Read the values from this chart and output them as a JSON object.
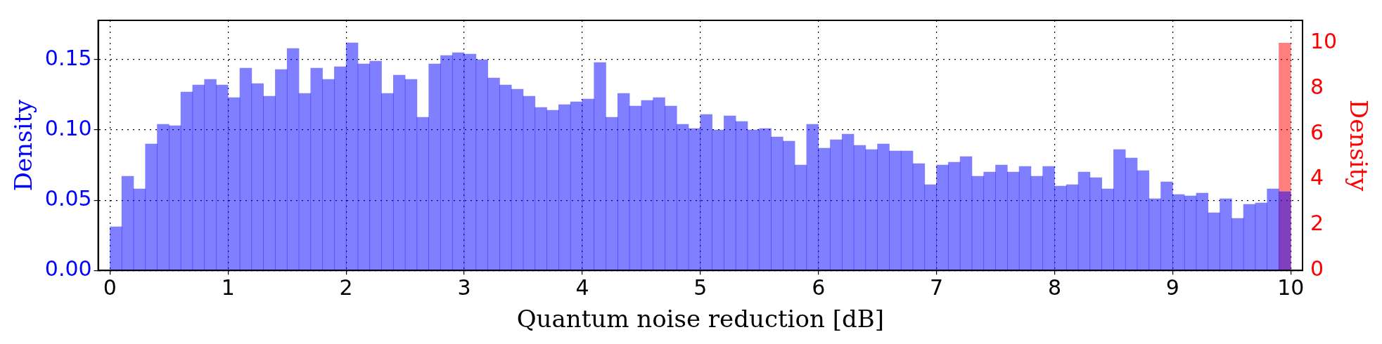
{
  "chart_data": {
    "type": "histogram",
    "xlabel": "Quantum noise reduction [dB]",
    "ylabel": "Density",
    "y2label": "Density",
    "xlim": [
      -0.1,
      10.1
    ],
    "xticks": [
      0,
      1,
      2,
      3,
      4,
      5,
      6,
      7,
      8,
      9,
      10
    ],
    "ylim": [
      0,
      0.178
    ],
    "yticks": [
      {
        "value": 0,
        "label": "0.00"
      },
      {
        "value": 0.05,
        "label": "0.05"
      },
      {
        "value": 0.1,
        "label": "0.10"
      },
      {
        "value": 0.15,
        "label": "0.15"
      }
    ],
    "y2lim": [
      0,
      11
    ],
    "y2ticks": [
      0,
      2,
      4,
      6,
      8,
      10
    ],
    "grid": true,
    "legend": false,
    "bins": [
      0,
      0.1,
      0.2,
      0.3,
      0.4,
      0.5,
      0.6,
      0.7,
      0.8,
      0.9,
      1,
      1.1,
      1.2,
      1.3,
      1.4,
      1.5,
      1.6,
      1.7,
      1.8,
      1.9,
      2,
      2.1,
      2.2,
      2.3,
      2.4,
      2.5,
      2.6,
      2.7,
      2.8,
      2.9,
      3,
      3.1,
      3.2,
      3.3,
      3.4,
      3.5,
      3.6,
      3.7,
      3.8,
      3.9,
      4,
      4.1,
      4.2,
      4.3,
      4.4,
      4.5,
      4.6,
      4.7,
      4.8,
      4.9,
      5,
      5.1,
      5.2,
      5.3,
      5.4,
      5.5,
      5.6,
      5.7,
      5.8,
      5.9,
      6,
      6.1,
      6.2,
      6.3,
      6.4,
      6.5,
      6.6,
      6.7,
      6.8,
      6.9,
      7,
      7.1,
      7.2,
      7.3,
      7.4,
      7.5,
      7.6,
      7.7,
      7.8,
      7.9,
      8,
      8.1,
      8.2,
      8.3,
      8.4,
      8.5,
      8.6,
      8.7,
      8.8,
      8.9,
      9,
      9.1,
      9.2,
      9.3,
      9.4,
      9.5,
      9.6,
      9.7,
      9.8,
      9.9,
      10
    ],
    "series": [
      {
        "color": "#0000ff",
        "values": [
          0.031,
          0.067,
          0.058,
          0.09,
          0.104,
          0.103,
          0.127,
          0.132,
          0.136,
          0.132,
          0.123,
          0.144,
          0.133,
          0.124,
          0.143,
          0.158,
          0.126,
          0.144,
          0.136,
          0.145,
          0.162,
          0.147,
          0.149,
          0.126,
          0.139,
          0.136,
          0.109,
          0.147,
          0.153,
          0.155,
          0.154,
          0.15,
          0.137,
          0.132,
          0.129,
          0.124,
          0.116,
          0.114,
          0.118,
          0.12,
          0.122,
          0.148,
          0.109,
          0.126,
          0.117,
          0.121,
          0.123,
          0.117,
          0.104,
          0.101,
          0.111,
          0.1,
          0.11,
          0.106,
          0.1,
          0.101,
          0.095,
          0.092,
          0.075,
          0.104,
          0.087,
          0.093,
          0.097,
          0.089,
          0.086,
          0.09,
          0.085,
          0.085,
          0.076,
          0.061,
          0.075,
          0.077,
          0.081,
          0.067,
          0.07,
          0.075,
          0.07,
          0.074,
          0.067,
          0.074,
          0.06,
          0.061,
          0.07,
          0.066,
          0.058,
          0.086,
          0.08,
          0.071,
          0.051,
          0.063,
          0.054,
          0.053,
          0.055,
          0.041,
          0.051,
          0.037,
          0.047,
          0.048,
          0.058,
          0.056
        ]
      },
      {
        "color": "#ff0000",
        "axis": "y2",
        "values": [
          0,
          0,
          0,
          0,
          0,
          0,
          0,
          0,
          0,
          0,
          0,
          0,
          0,
          0,
          0,
          0,
          0,
          0,
          0,
          0,
          0,
          0,
          0,
          0,
          0,
          0,
          0,
          0,
          0,
          0,
          0,
          0,
          0,
          0,
          0,
          0,
          0,
          0,
          0,
          0,
          0,
          0,
          0,
          0,
          0,
          0,
          0,
          0,
          0,
          0,
          0,
          0,
          0,
          0,
          0,
          0,
          0,
          0,
          0,
          0,
          0,
          0,
          0,
          0,
          0,
          0,
          0,
          0,
          0,
          0,
          0,
          0,
          0,
          0,
          0,
          0,
          0,
          0,
          0,
          0,
          0,
          0,
          0,
          0,
          0,
          0,
          0,
          0,
          0,
          0,
          0,
          0,
          0,
          0,
          0,
          0,
          0,
          0,
          0,
          10
        ]
      }
    ]
  }
}
